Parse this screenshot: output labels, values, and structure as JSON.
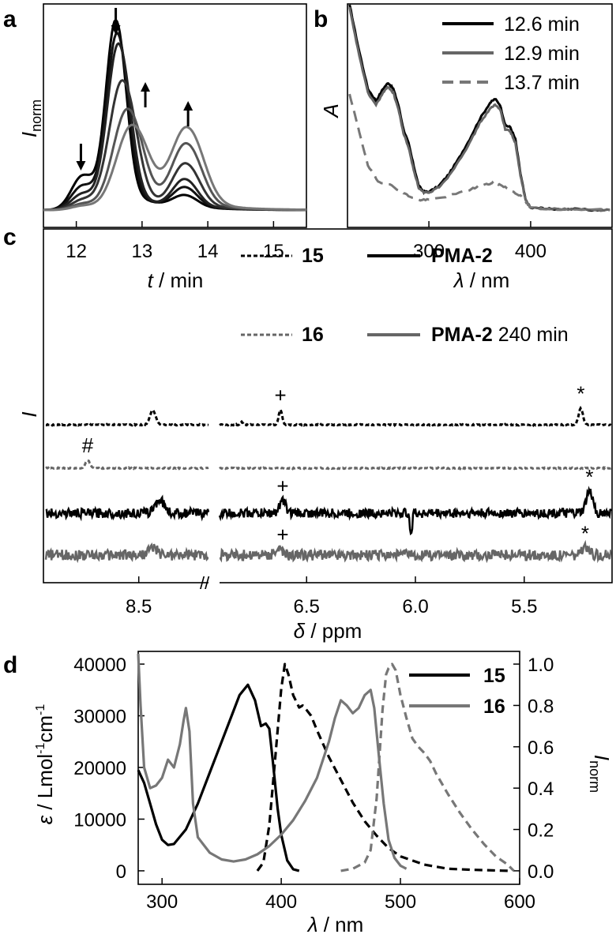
{
  "chart_data": [
    {
      "panel": "a",
      "type": "line",
      "xlabel_var": "t",
      "xlabel_unit": " / min",
      "ylabel_var": "I",
      "ylabel_sub": "norm",
      "xlim": [
        11.5,
        15.5
      ],
      "ylim": [
        0,
        1.0
      ],
      "xticks": [
        12,
        13,
        14,
        15
      ],
      "markers": [
        {
          "x": 12.07,
          "direction": "down"
        },
        {
          "x": 12.6,
          "direction": "down"
        },
        {
          "x": 13.05,
          "direction": "up"
        },
        {
          "x": 13.7,
          "direction": "up"
        }
      ],
      "series": [
        {
          "name": "trace 1",
          "color": "#000000",
          "peaks": [
            [
              12.1,
              0.17,
              0.17
            ],
            [
              12.6,
              0.93,
              0.15
            ],
            [
              13.65,
              0.06,
              0.18
            ]
          ]
        },
        {
          "name": "trace 2",
          "color": "#111111",
          "peaks": [
            [
              12.1,
              0.12,
              0.17
            ],
            [
              12.62,
              0.87,
              0.16
            ],
            [
              13.65,
              0.1,
              0.18
            ]
          ]
        },
        {
          "name": "trace 3",
          "color": "#222222",
          "peaks": [
            [
              12.1,
              0.08,
              0.17
            ],
            [
              12.64,
              0.82,
              0.17
            ],
            [
              13.65,
              0.14,
              0.18
            ]
          ]
        },
        {
          "name": "trace 4",
          "color": "#333333",
          "peaks": [
            [
              12.1,
              0.05,
              0.17
            ],
            [
              12.7,
              0.64,
              0.2
            ],
            [
              13.66,
              0.22,
              0.2
            ]
          ]
        },
        {
          "name": "trace 5",
          "color": "#555555",
          "peaks": [
            [
              12.1,
              0.03,
              0.17
            ],
            [
              12.78,
              0.5,
              0.22
            ],
            [
              13.67,
              0.32,
              0.22
            ]
          ]
        },
        {
          "name": "trace 6",
          "color": "#777777",
          "peaks": [
            [
              12.1,
              0.02,
              0.17
            ],
            [
              12.85,
              0.42,
              0.24
            ],
            [
              13.68,
              0.4,
              0.24
            ]
          ]
        }
      ]
    },
    {
      "panel": "b",
      "type": "line",
      "xlabel_var": "λ",
      "xlabel_unit": " / nm",
      "ylabel_var": "A",
      "xlim": [
        220,
        480
      ],
      "ylim": [
        0,
        1.0
      ],
      "xticks": [
        300,
        400
      ],
      "series": [
        {
          "name": "12.6 min",
          "color": "#000000",
          "dash": "",
          "x": [
            222,
            230,
            240,
            248,
            255,
            260,
            265,
            270,
            275,
            280,
            285,
            290,
            295,
            300,
            310,
            320,
            330,
            340,
            350,
            360,
            365,
            370,
            375,
            380,
            385,
            390,
            395,
            400,
            410,
            420,
            440,
            460,
            478
          ],
          "y": [
            1.02,
            0.82,
            0.6,
            0.54,
            0.6,
            0.63,
            0.6,
            0.52,
            0.4,
            0.33,
            0.22,
            0.12,
            0.09,
            0.09,
            0.12,
            0.18,
            0.26,
            0.35,
            0.45,
            0.53,
            0.55,
            0.52,
            0.42,
            0.41,
            0.35,
            0.18,
            0.05,
            0.01,
            0.01,
            0.005,
            0.005,
            0.0,
            0.0
          ]
        },
        {
          "name": "12.9 min",
          "color": "#666666",
          "dash": "",
          "x": [
            222,
            230,
            240,
            248,
            255,
            260,
            265,
            270,
            275,
            280,
            285,
            290,
            295,
            300,
            310,
            320,
            330,
            340,
            350,
            360,
            365,
            370,
            375,
            380,
            385,
            390,
            395,
            400,
            410,
            420,
            440,
            460,
            478
          ],
          "y": [
            1.0,
            0.8,
            0.58,
            0.52,
            0.58,
            0.61,
            0.58,
            0.5,
            0.38,
            0.31,
            0.2,
            0.11,
            0.085,
            0.085,
            0.115,
            0.17,
            0.25,
            0.33,
            0.43,
            0.5,
            0.52,
            0.5,
            0.4,
            0.39,
            0.33,
            0.17,
            0.05,
            0.01,
            0.01,
            0.005,
            0.005,
            0.0,
            0.0
          ]
        },
        {
          "name": "13.7 min",
          "color": "#777777",
          "dash": "14,8",
          "x": [
            222,
            230,
            240,
            250,
            260,
            270,
            280,
            290,
            300,
            320,
            340,
            350,
            360,
            365,
            370,
            380,
            390,
            395,
            400,
            420,
            478
          ],
          "y": [
            0.57,
            0.42,
            0.22,
            0.14,
            0.13,
            0.1,
            0.07,
            0.05,
            0.05,
            0.07,
            0.1,
            0.12,
            0.13,
            0.135,
            0.125,
            0.1,
            0.07,
            0.04,
            0.01,
            0.005,
            0.0
          ]
        }
      ]
    },
    {
      "panel": "c",
      "type": "line",
      "xlabel_var": "δ",
      "xlabel_unit": " / ppm",
      "ylabel_var": "I",
      "xticks": [
        8.5,
        6.5,
        6.0,
        5.5
      ],
      "xlim_left": [
        8.9,
        8.2
      ],
      "xlim_right": [
        6.9,
        5.1
      ],
      "break_label": "//",
      "series": [
        {
          "name": "15",
          "color": "#000000",
          "dash": "5,3",
          "noise": 0.004,
          "peaks": [
            [
              8.44,
              0.11,
              0.012
            ],
            [
              6.62,
              0.11,
              0.008
            ],
            [
              6.8,
              0.02,
              0.006
            ],
            [
              5.24,
              0.12,
              0.01
            ]
          ],
          "annotations": [
            {
              "x": 6.62,
              "label": "+"
            },
            {
              "x": 5.24,
              "label": "*"
            }
          ]
        },
        {
          "name": "16",
          "color": "#666666",
          "dash": "5,3",
          "noise": 0.004,
          "peaks": [
            [
              8.72,
              0.06,
              0.01
            ]
          ],
          "annotations": [
            {
              "x": 8.72,
              "label": "#"
            }
          ]
        },
        {
          "name": "PMA-2",
          "color": "#000000",
          "dash": "",
          "noise": 0.035,
          "peaks": [
            [
              8.41,
              0.1,
              0.02
            ],
            [
              6.61,
              0.09,
              0.015
            ],
            [
              5.2,
              0.16,
              0.015
            ]
          ],
          "annotations": [
            {
              "x": 6.61,
              "label": "+"
            },
            {
              "x": 5.2,
              "label": "*"
            }
          ]
        },
        {
          "name": "PMA-2 240 min",
          "color": "#666666",
          "dash": "",
          "noise": 0.04,
          "peaks": [
            [
              8.44,
              0.05,
              0.02
            ],
            [
              6.63,
              0.04,
              0.015
            ],
            [
              5.22,
              0.05,
              0.015
            ]
          ],
          "annotations": [
            {
              "x": 6.61,
              "label": "+"
            },
            {
              "x": 5.22,
              "label": "*"
            }
          ]
        }
      ]
    },
    {
      "panel": "d",
      "type": "line",
      "xlabel_var": "λ",
      "xlabel_unit": " / nm",
      "ylabel_left_var": "ε",
      "ylabel_left_unit": " / Lmol",
      "ylabel_left_sup1": "-1",
      "ylabel_left_mid": "cm",
      "ylabel_left_sup2": "-1",
      "ylabel_right_var": "I",
      "ylabel_right_sub": "norm",
      "xlim": [
        280,
        600
      ],
      "ylim_left": [
        -2000,
        42000
      ],
      "ylim_right": [
        -0.05,
        1.05
      ],
      "xticks": [
        300,
        400,
        500,
        600
      ],
      "yticks_left": [
        0,
        10000,
        20000,
        30000,
        40000
      ],
      "yticks_right": [
        0.0,
        0.2,
        0.4,
        0.6,
        0.8,
        1.0
      ],
      "ytick_right_labels": [
        "0.0",
        "0.2",
        "0.4",
        "0.6",
        "0.8",
        "1.0"
      ],
      "legend": [
        {
          "name": "15",
          "color": "#000000"
        },
        {
          "name": "16",
          "color": "#777777"
        }
      ],
      "series": [
        {
          "name": "15 absorption",
          "color": "#000000",
          "dash": "",
          "axis": "left",
          "x": [
            280,
            285,
            290,
            295,
            300,
            305,
            310,
            320,
            330,
            340,
            350,
            360,
            365,
            372,
            378,
            383,
            387,
            390,
            393,
            397,
            400,
            405,
            410,
            415
          ],
          "y": [
            19500,
            17000,
            13000,
            9000,
            6000,
            5000,
            5200,
            8000,
            13000,
            19000,
            25000,
            31000,
            34000,
            36000,
            33000,
            28000,
            28500,
            27500,
            21000,
            12000,
            7000,
            2000,
            300,
            0
          ]
        },
        {
          "name": "15 emission",
          "color": "#000000",
          "dash": "10,6",
          "axis": "right",
          "x": [
            380,
            385,
            390,
            395,
            400,
            403,
            406,
            410,
            415,
            418,
            421,
            425,
            430,
            440,
            450,
            460,
            470,
            480,
            490,
            500,
            520,
            540,
            560,
            590
          ],
          "y": [
            0.0,
            0.04,
            0.22,
            0.55,
            0.88,
            1.0,
            0.95,
            0.85,
            0.79,
            0.8,
            0.78,
            0.75,
            0.68,
            0.55,
            0.44,
            0.33,
            0.24,
            0.17,
            0.11,
            0.07,
            0.03,
            0.01,
            0.005,
            0.0
          ]
        },
        {
          "name": "16 absorption",
          "color": "#777777",
          "dash": "",
          "axis": "left",
          "x": [
            280,
            282,
            285,
            290,
            295,
            300,
            305,
            310,
            315,
            318,
            320,
            323,
            326,
            330,
            340,
            350,
            360,
            370,
            380,
            390,
            400,
            410,
            420,
            430,
            440,
            445,
            450,
            455,
            460,
            465,
            470,
            475,
            478,
            482,
            486,
            490,
            495,
            500,
            505
          ],
          "y": [
            42000,
            32000,
            20000,
            16000,
            16500,
            18000,
            21500,
            20000,
            24500,
            29000,
            31500,
            27000,
            13000,
            6500,
            3500,
            2200,
            1800,
            2200,
            3200,
            4800,
            7000,
            9800,
            13500,
            18000,
            25000,
            29500,
            33000,
            32000,
            30500,
            31500,
            34000,
            35000,
            31500,
            22000,
            13000,
            6000,
            2500,
            1000,
            400
          ]
        },
        {
          "name": "16 emission",
          "color": "#777777",
          "dash": "10,6",
          "axis": "right",
          "x": [
            450,
            460,
            470,
            475,
            480,
            485,
            488,
            490,
            493,
            496,
            500,
            505,
            510,
            515,
            520,
            525,
            530,
            540,
            550,
            560,
            570,
            580,
            590,
            595
          ],
          "y": [
            0.0,
            0.01,
            0.04,
            0.1,
            0.35,
            0.78,
            0.95,
            0.98,
            1.0,
            0.97,
            0.85,
            0.74,
            0.64,
            0.6,
            0.57,
            0.53,
            0.47,
            0.37,
            0.28,
            0.2,
            0.13,
            0.07,
            0.03,
            0.0
          ]
        }
      ]
    }
  ],
  "panels": {
    "a": {
      "letter": "a"
    },
    "b": {
      "letter": "b",
      "legend": [
        "12.6 min",
        "12.9 min",
        "13.7 min"
      ]
    },
    "c": {
      "letter": "c",
      "legend_15": "15",
      "legend_16": "16",
      "legend_pma_bold": "PMA-2",
      "legend_pma240_bold": "PMA-2",
      "legend_pma240_suffix": " 240 min"
    },
    "d": {
      "letter": "d"
    }
  }
}
